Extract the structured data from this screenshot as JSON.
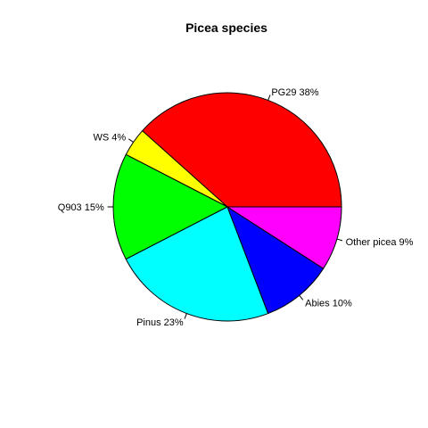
{
  "chart_data": {
    "type": "pie",
    "title": "Picea species",
    "slices": [
      {
        "label": "PG29 38%",
        "value": 38,
        "color": "#FF0000"
      },
      {
        "label": "WS 4%",
        "value": 4,
        "color": "#FFFF00"
      },
      {
        "label": "Q903 15%",
        "value": 15,
        "color": "#00FF00"
      },
      {
        "label": "Pinus 23%",
        "value": 23,
        "color": "#00FFFF"
      },
      {
        "label": "Abies 10%",
        "value": 10,
        "color": "#0000FF"
      },
      {
        "label": "Other picea 9%",
        "value": 9,
        "color": "#FF00FF"
      }
    ],
    "direction": "counterclockwise",
    "start_angle_deg": 0
  }
}
